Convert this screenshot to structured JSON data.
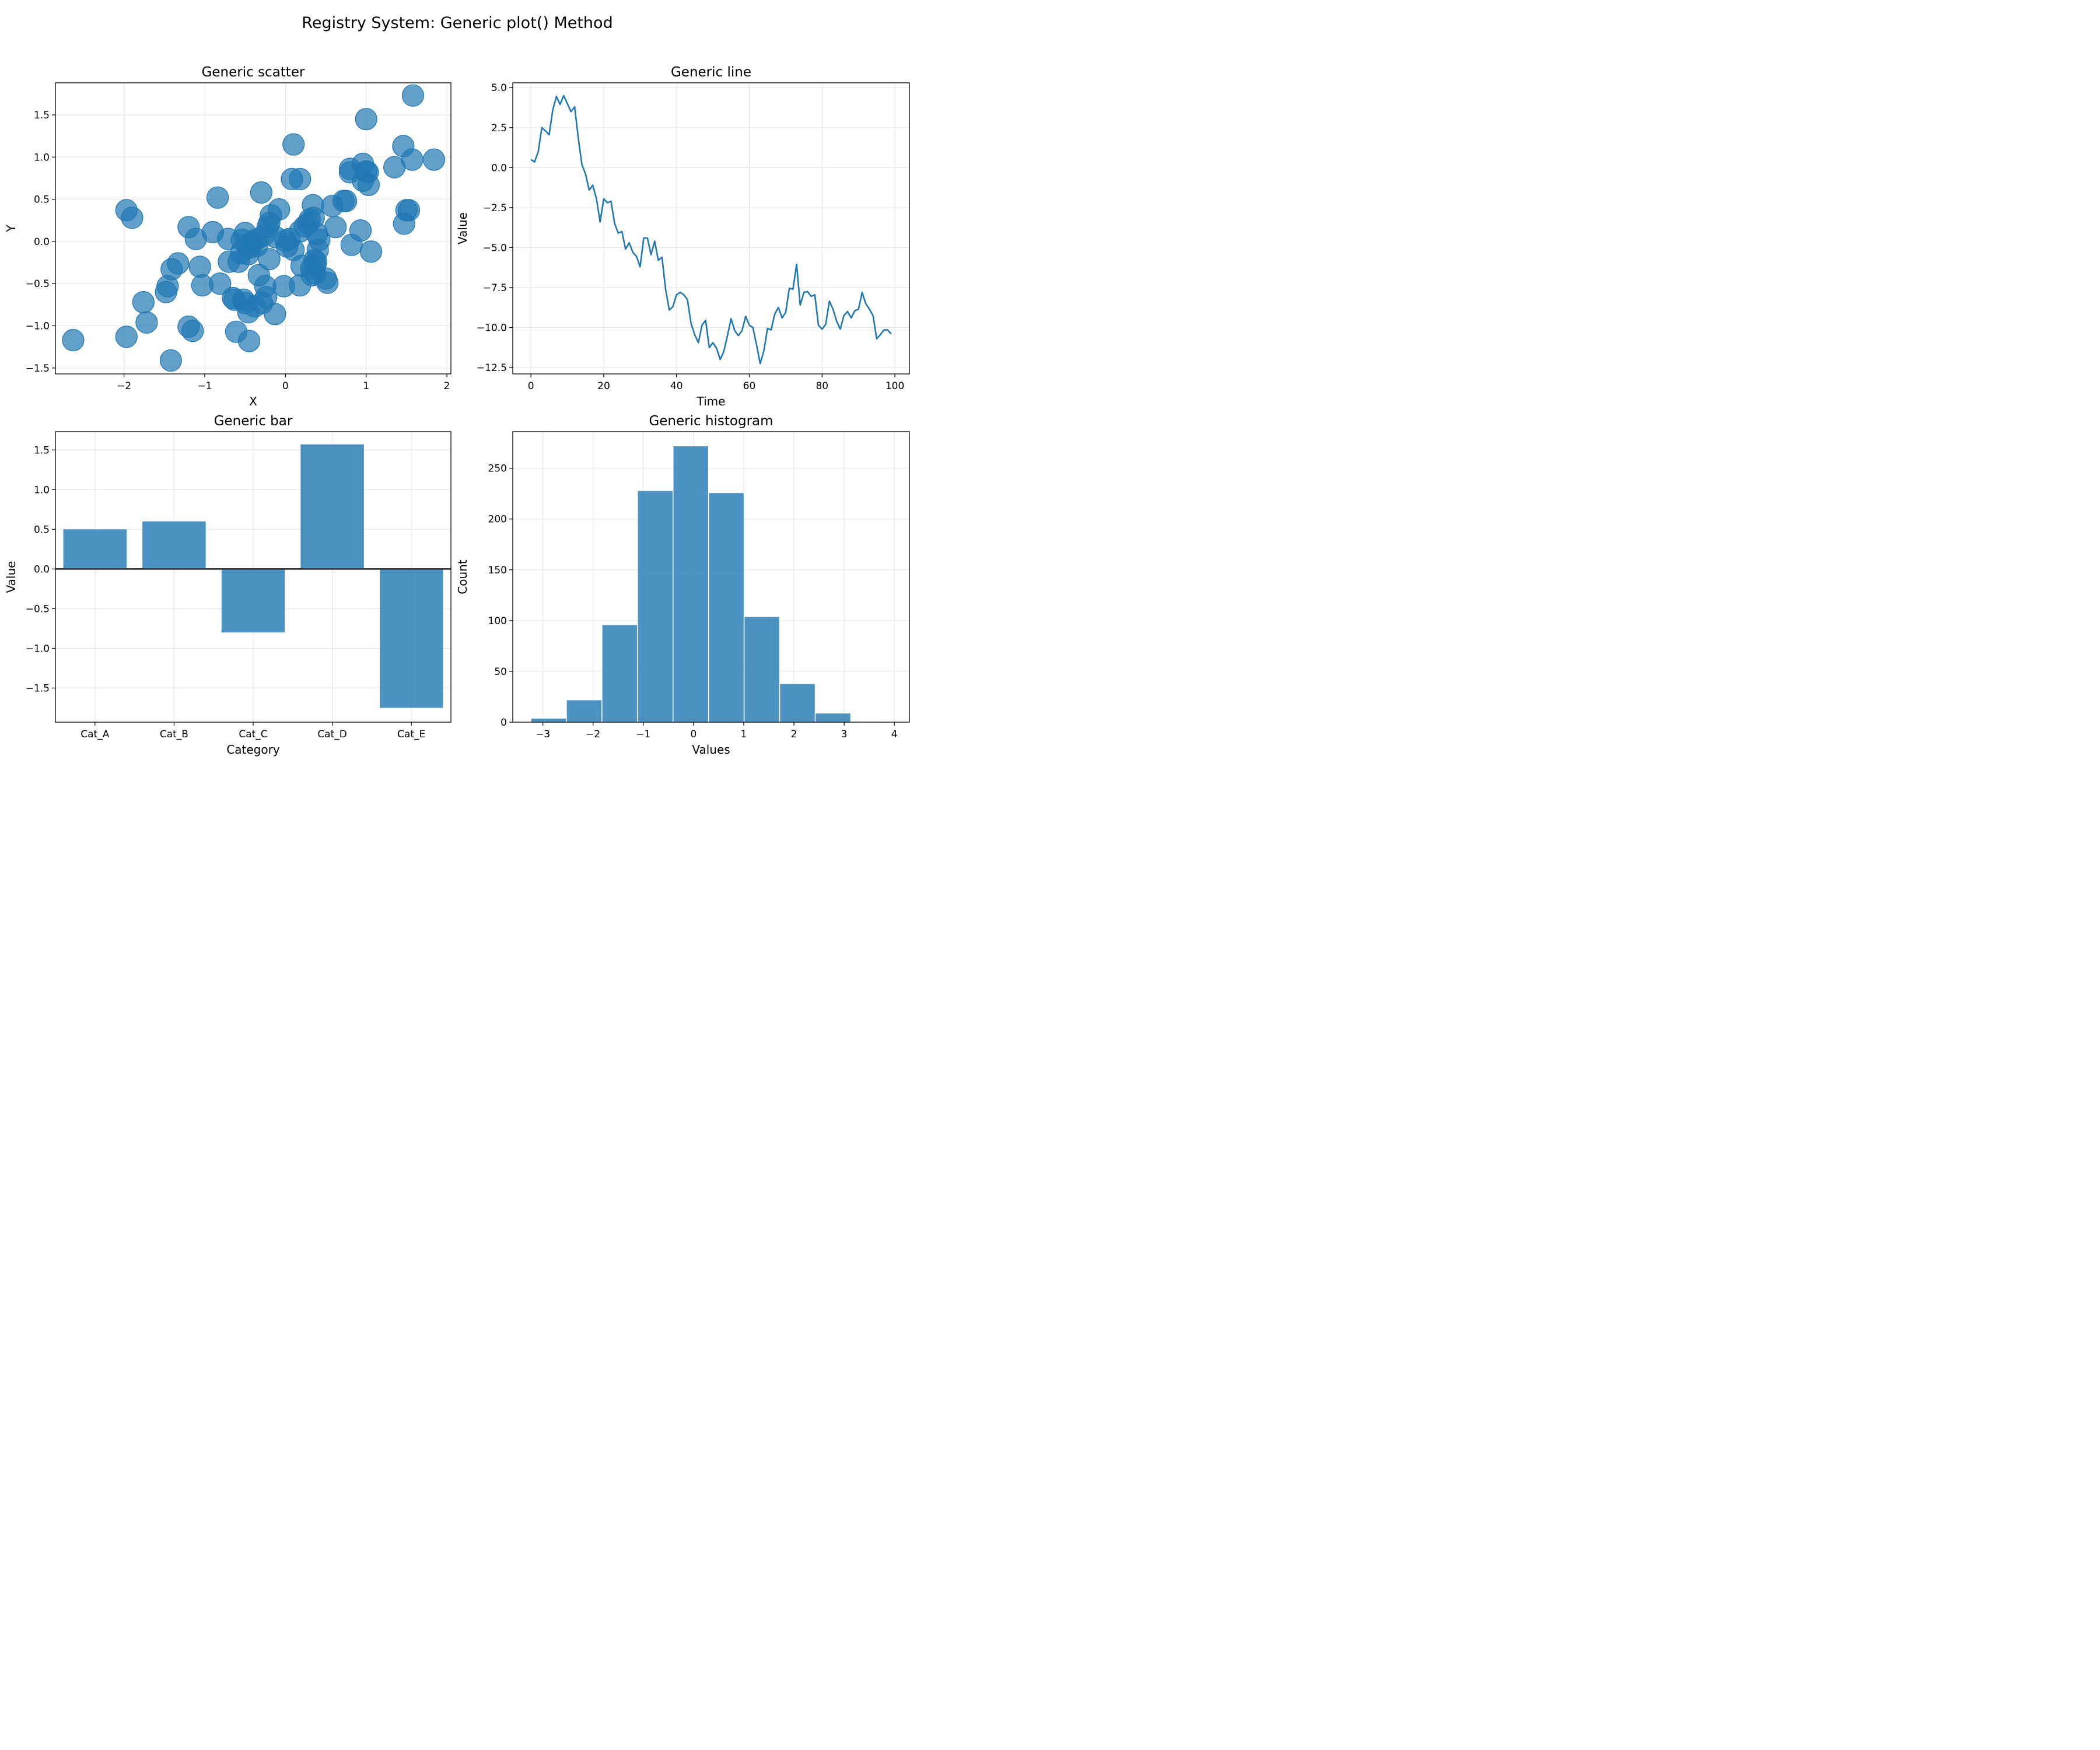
{
  "figure": {
    "title": "Registry System: Generic plot() Method",
    "accent_color": "#1f77b4"
  },
  "chart_data": [
    {
      "type": "scatter",
      "title": "Generic scatter",
      "xlabel": "X",
      "ylabel": "Y",
      "xlim": [
        -2.85,
        2.05
      ],
      "ylim": [
        -1.57,
        1.88
      ],
      "xticks": [
        -2,
        -1,
        0,
        1,
        2
      ],
      "yticks": [
        -1.5,
        -1.0,
        -0.5,
        0.0,
        0.5,
        1.0,
        1.5
      ],
      "grid": true,
      "points": [
        [
          -2.63,
          -1.17
        ],
        [
          -1.97,
          -1.13
        ],
        [
          -1.97,
          0.37
        ],
        [
          -1.9,
          0.28
        ],
        [
          -1.76,
          -0.72
        ],
        [
          -1.72,
          -0.96
        ],
        [
          -1.48,
          -0.6
        ],
        [
          -1.46,
          -0.53
        ],
        [
          -1.42,
          -1.41
        ],
        [
          -1.41,
          -0.33
        ],
        [
          -1.33,
          -0.26
        ],
        [
          -1.2,
          0.17
        ],
        [
          -1.2,
          -1.01
        ],
        [
          -1.15,
          -1.06
        ],
        [
          -1.11,
          0.03
        ],
        [
          -1.06,
          -0.3
        ],
        [
          -1.03,
          -0.52
        ],
        [
          -0.9,
          0.11
        ],
        [
          -0.84,
          0.52
        ],
        [
          -0.81,
          -0.5
        ],
        [
          -0.71,
          0.03
        ],
        [
          -0.7,
          -0.24
        ],
        [
          -0.65,
          -0.67
        ],
        [
          -0.63,
          -0.69
        ],
        [
          -0.61,
          -1.07
        ],
        [
          -0.58,
          -0.24
        ],
        [
          -0.55,
          -0.14
        ],
        [
          -0.54,
          0.02
        ],
        [
          -0.52,
          -0.69
        ],
        [
          -0.5,
          -0.73
        ],
        [
          -0.5,
          0.1
        ],
        [
          -0.48,
          -0.04
        ],
        [
          -0.46,
          -0.15
        ],
        [
          -0.46,
          -0.84
        ],
        [
          -0.45,
          -1.18
        ],
        [
          -0.43,
          -0.07
        ],
        [
          -0.41,
          -0.01
        ],
        [
          -0.38,
          -0.77
        ],
        [
          -0.37,
          0.02
        ],
        [
          -0.35,
          -0.05
        ],
        [
          -0.33,
          -0.4
        ],
        [
          -0.3,
          0.58
        ],
        [
          -0.29,
          -0.73
        ],
        [
          -0.27,
          0.07
        ],
        [
          -0.25,
          -0.53
        ],
        [
          -0.24,
          -0.66
        ],
        [
          -0.22,
          0.17
        ],
        [
          -0.2,
          0.22
        ],
        [
          -0.2,
          -0.21
        ],
        [
          -0.18,
          0.31
        ],
        [
          -0.13,
          -0.86
        ],
        [
          -0.12,
          0.05
        ],
        [
          -0.08,
          0.38
        ],
        [
          -0.02,
          -0.53
        ],
        [
          0.0,
          0.01
        ],
        [
          0.02,
          -0.06
        ],
        [
          0.05,
          0.03
        ],
        [
          0.08,
          0.74
        ],
        [
          0.1,
          1.15
        ],
        [
          0.1,
          -0.1
        ],
        [
          0.18,
          0.74
        ],
        [
          0.18,
          0.12
        ],
        [
          0.18,
          -0.52
        ],
        [
          0.2,
          -0.29
        ],
        [
          0.24,
          0.18
        ],
        [
          0.28,
          0.21
        ],
        [
          0.3,
          0.26
        ],
        [
          0.32,
          -0.32
        ],
        [
          0.33,
          -0.4
        ],
        [
          0.34,
          0.43
        ],
        [
          0.35,
          0.28
        ],
        [
          0.36,
          -0.22
        ],
        [
          0.37,
          -0.38
        ],
        [
          0.37,
          -0.29
        ],
        [
          0.38,
          -0.24
        ],
        [
          0.39,
          0.09
        ],
        [
          0.4,
          -0.1
        ],
        [
          0.42,
          0.02
        ],
        [
          0.5,
          -0.44
        ],
        [
          0.52,
          -0.49
        ],
        [
          0.58,
          0.42
        ],
        [
          0.62,
          0.17
        ],
        [
          0.72,
          0.48
        ],
        [
          0.75,
          0.48
        ],
        [
          0.8,
          0.86
        ],
        [
          0.8,
          0.82
        ],
        [
          0.82,
          -0.04
        ],
        [
          0.93,
          0.13
        ],
        [
          0.96,
          0.92
        ],
        [
          0.96,
          0.72
        ],
        [
          1.0,
          0.83
        ],
        [
          1.0,
          1.45
        ],
        [
          1.02,
          0.82
        ],
        [
          1.03,
          0.67
        ],
        [
          1.06,
          -0.12
        ],
        [
          1.35,
          0.88
        ],
        [
          1.46,
          1.13
        ],
        [
          1.47,
          0.21
        ],
        [
          1.5,
          0.37
        ],
        [
          1.53,
          0.37
        ],
        [
          1.57,
          0.97
        ],
        [
          1.58,
          1.73
        ],
        [
          1.84,
          0.97
        ]
      ]
    },
    {
      "type": "line",
      "title": "Generic line",
      "xlabel": "Time",
      "ylabel": "Value",
      "xlim": [
        -5,
        104
      ],
      "ylim": [
        -12.9,
        5.3
      ],
      "xticks": [
        0,
        20,
        40,
        60,
        80,
        100
      ],
      "yticks": [
        5.0,
        2.5,
        0.0,
        -2.5,
        -5.0,
        -7.5,
        -10.0,
        -12.5
      ],
      "grid": true,
      "x_start": 0,
      "x_step": 1,
      "y": [
        0.5,
        0.35,
        1.0,
        2.5,
        2.3,
        2.05,
        3.6,
        4.45,
        3.95,
        4.5,
        4.0,
        3.5,
        3.8,
        1.85,
        0.2,
        -0.4,
        -1.4,
        -1.1,
        -1.95,
        -3.4,
        -1.95,
        -2.2,
        -2.1,
        -3.5,
        -4.1,
        -4.0,
        -5.1,
        -4.7,
        -5.3,
        -5.55,
        -6.2,
        -4.4,
        -4.4,
        -5.45,
        -4.6,
        -5.8,
        -5.6,
        -7.6,
        -8.9,
        -8.7,
        -7.95,
        -7.8,
        -7.95,
        -8.25,
        -9.75,
        -10.45,
        -10.95,
        -9.85,
        -9.55,
        -11.25,
        -10.95,
        -11.3,
        -12.0,
        -11.5,
        -10.5,
        -9.45,
        -10.2,
        -10.5,
        -10.2,
        -9.3,
        -9.85,
        -10.0,
        -11.1,
        -12.25,
        -11.45,
        -10.05,
        -10.15,
        -9.15,
        -8.75,
        -9.4,
        -9.05,
        -7.55,
        -7.6,
        -6.05,
        -8.6,
        -7.8,
        -7.75,
        -8.05,
        -7.95,
        -9.85,
        -10.1,
        -9.8,
        -8.35,
        -8.85,
        -9.6,
        -10.1,
        -9.25,
        -9.0,
        -9.4,
        -8.95,
        -8.85,
        -7.8,
        -8.5,
        -8.85,
        -9.25,
        -10.7,
        -10.45,
        -10.15,
        -10.15,
        -10.4
      ]
    },
    {
      "type": "bar",
      "title": "Generic bar",
      "xlabel": "Category",
      "ylabel": "Value",
      "ylim": [
        -1.93,
        1.73
      ],
      "yticks": [
        1.5,
        1.0,
        0.5,
        0.0,
        -0.5,
        -1.0,
        -1.5
      ],
      "grid": true,
      "categories": [
        "Cat_A",
        "Cat_B",
        "Cat_C",
        "Cat_D",
        "Cat_E"
      ],
      "values": [
        0.5,
        0.6,
        -0.8,
        1.57,
        -1.75
      ]
    },
    {
      "type": "bar",
      "histogram": true,
      "title": "Generic histogram",
      "xlabel": "Values",
      "ylabel": "Count",
      "xlim": [
        -3.6,
        4.3
      ],
      "ylim": [
        0,
        286
      ],
      "xticks": [
        -3,
        -2,
        -1,
        0,
        1,
        2,
        3,
        4
      ],
      "yticks": [
        0,
        50,
        100,
        150,
        200,
        250
      ],
      "grid": true,
      "bin_edges": [
        -3.24,
        -2.532,
        -1.824,
        -1.116,
        -0.408,
        0.3,
        1.008,
        1.716,
        2.424,
        3.132,
        3.84
      ],
      "counts": [
        4,
        22,
        96,
        228,
        272,
        226,
        104,
        38,
        9,
        1
      ]
    }
  ]
}
